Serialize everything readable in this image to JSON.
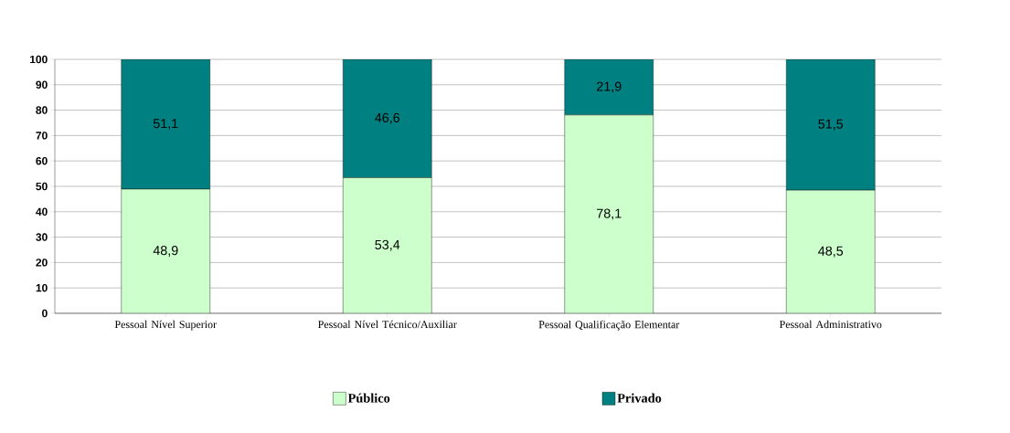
{
  "chart_data": {
    "type": "bar",
    "stacked": true,
    "categories": [
      "Pessoal Nível Superior",
      "Pessoal Nível Técnico/Auxiliar",
      "Pessoal Qualificação Elementar",
      "Pessoal Administrativo"
    ],
    "series": [
      {
        "name": "Público",
        "color": "#ccffcc",
        "values": [
          48.9,
          53.4,
          78.1,
          48.5
        ],
        "value_labels": [
          "48,9",
          "53,4",
          "78,1",
          "48,5"
        ]
      },
      {
        "name": "Privado",
        "color": "#008080",
        "values": [
          51.1,
          46.6,
          21.9,
          51.5
        ],
        "value_labels": [
          "51,1",
          "46,6",
          "21,9",
          "51,5"
        ]
      }
    ],
    "ylim": [
      0,
      100
    ],
    "yticks": [
      0,
      10,
      20,
      30,
      40,
      50,
      60,
      70,
      80,
      90,
      100
    ],
    "grid": "y",
    "legend": "bottom"
  }
}
